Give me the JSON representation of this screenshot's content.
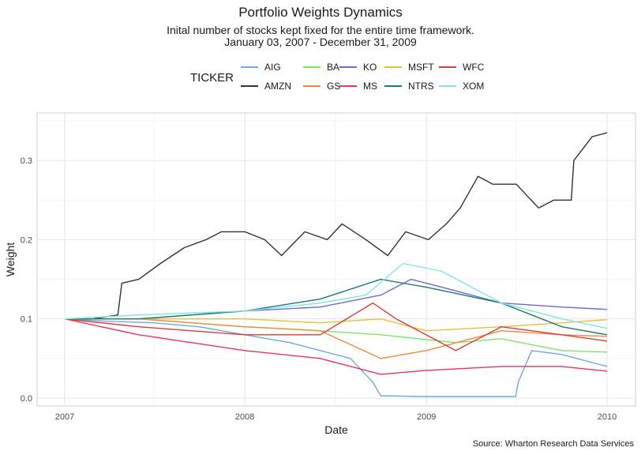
{
  "chart_data": {
    "type": "line",
    "title": "Portfolio Weights Dynamics",
    "subtitle_line1": "Inital number of stocks kept fixed for the entire time framework.",
    "subtitle_line2": "January 03, 2007 - December 31, 2009",
    "xlabel": "Date",
    "ylabel": "Weight",
    "caption": "Source: Wharton Research Data Services",
    "legend_title": "TICKER",
    "legend_position": "top",
    "grid": true,
    "xlim": [
      "2007-01-03",
      "2009-12-31"
    ],
    "ylim": [
      -0.01,
      0.36
    ],
    "x_ticks": [
      "2007",
      "2008",
      "2009",
      "2010"
    ],
    "y_ticks": [
      "0.0",
      "0.1",
      "0.2",
      "0.3"
    ],
    "series": [
      {
        "name": "AIG",
        "color": "#6fa8e6",
        "x": [
          "2007-01-03",
          "2007-04-01",
          "2007-07-01",
          "2007-10-01",
          "2008-01-01",
          "2008-04-01",
          "2008-06-01",
          "2008-08-01",
          "2008-09-15",
          "2008-10-01",
          "2009-01-01",
          "2009-04-01",
          "2009-06-30",
          "2009-07-05",
          "2009-08-01",
          "2009-10-01",
          "2009-12-31"
        ],
        "y": [
          0.1,
          0.097,
          0.095,
          0.09,
          0.08,
          0.07,
          0.06,
          0.05,
          0.02,
          0.003,
          0.002,
          0.002,
          0.002,
          0.02,
          0.06,
          0.055,
          0.04
        ]
      },
      {
        "name": "AMZN",
        "color": "#333333",
        "x": [
          "2007-01-03",
          "2007-03-01",
          "2007-04-20",
          "2007-04-28",
          "2007-06-01",
          "2007-07-15",
          "2007-09-01",
          "2007-10-15",
          "2007-11-15",
          "2008-01-01",
          "2008-02-10",
          "2008-03-15",
          "2008-05-01",
          "2008-06-15",
          "2008-07-15",
          "2008-09-01",
          "2008-10-15",
          "2008-11-20",
          "2009-01-05",
          "2009-02-10",
          "2009-03-10",
          "2009-04-15",
          "2009-05-15",
          "2009-07-01",
          "2009-08-15",
          "2009-09-15",
          "2009-10-20",
          "2009-10-25",
          "2009-12-01",
          "2009-12-31"
        ],
        "y": [
          0.1,
          0.1,
          0.105,
          0.145,
          0.15,
          0.17,
          0.19,
          0.2,
          0.21,
          0.21,
          0.2,
          0.18,
          0.21,
          0.2,
          0.22,
          0.2,
          0.18,
          0.21,
          0.2,
          0.22,
          0.24,
          0.28,
          0.27,
          0.27,
          0.24,
          0.25,
          0.25,
          0.3,
          0.33,
          0.335
        ]
      },
      {
        "name": "BA",
        "color": "#7fe56a",
        "x": [
          "2007-01-03",
          "2007-06-01",
          "2008-01-01",
          "2008-06-01",
          "2008-10-01",
          "2009-03-01",
          "2009-06-01",
          "2009-10-01",
          "2009-12-31"
        ],
        "y": [
          0.1,
          0.1,
          0.09,
          0.085,
          0.08,
          0.07,
          0.075,
          0.06,
          0.058
        ]
      },
      {
        "name": "GS",
        "color": "#f08a3c",
        "x": [
          "2007-01-03",
          "2007-06-01",
          "2008-01-01",
          "2008-06-01",
          "2008-10-01",
          "2009-01-01",
          "2009-06-01",
          "2009-10-01",
          "2009-12-31"
        ],
        "y": [
          0.1,
          0.1,
          0.09,
          0.085,
          0.05,
          0.06,
          0.085,
          0.08,
          0.078
        ]
      },
      {
        "name": "KO",
        "color": "#6b6bdd",
        "x": [
          "2007-01-03",
          "2007-06-01",
          "2008-01-01",
          "2008-06-01",
          "2008-10-01",
          "2008-12-01",
          "2009-02-01",
          "2009-06-01",
          "2009-10-01",
          "2009-12-31"
        ],
        "y": [
          0.1,
          0.1,
          0.11,
          0.115,
          0.13,
          0.15,
          0.14,
          0.12,
          0.115,
          0.112
        ]
      },
      {
        "name": "MS",
        "color": "#e8365d",
        "x": [
          "2007-01-03",
          "2007-06-01",
          "2008-01-01",
          "2008-06-01",
          "2008-10-01",
          "2009-01-01",
          "2009-06-01",
          "2009-10-01",
          "2009-12-31"
        ],
        "y": [
          0.1,
          0.08,
          0.06,
          0.05,
          0.03,
          0.035,
          0.04,
          0.04,
          0.034
        ]
      },
      {
        "name": "MSFT",
        "color": "#e0c43a",
        "x": [
          "2007-01-03",
          "2007-06-01",
          "2008-01-01",
          "2008-06-01",
          "2008-10-01",
          "2009-01-01",
          "2009-06-01",
          "2009-10-01",
          "2009-12-31"
        ],
        "y": [
          0.1,
          0.1,
          0.1,
          0.095,
          0.1,
          0.085,
          0.09,
          0.095,
          0.099
        ]
      },
      {
        "name": "NTRS",
        "color": "#1d7b73",
        "x": [
          "2007-01-03",
          "2007-06-01",
          "2008-01-01",
          "2008-06-01",
          "2008-10-01",
          "2009-01-01",
          "2009-06-01",
          "2009-10-01",
          "2009-12-31"
        ],
        "y": [
          0.1,
          0.1,
          0.11,
          0.125,
          0.15,
          0.14,
          0.12,
          0.09,
          0.08
        ]
      },
      {
        "name": "WFC",
        "color": "#e03a3a",
        "x": [
          "2007-01-03",
          "2007-06-01",
          "2008-01-01",
          "2008-06-01",
          "2008-09-15",
          "2008-11-01",
          "2009-03-01",
          "2009-06-01",
          "2009-10-01",
          "2009-12-31"
        ],
        "y": [
          0.1,
          0.09,
          0.08,
          0.08,
          0.12,
          0.1,
          0.06,
          0.09,
          0.08,
          0.072
        ]
      },
      {
        "name": "XOM",
        "color": "#7ee8e0",
        "x": [
          "2007-01-03",
          "2007-06-01",
          "2008-01-01",
          "2008-06-01",
          "2008-09-01",
          "2008-11-15",
          "2009-02-01",
          "2009-06-01",
          "2009-10-01",
          "2009-12-31"
        ],
        "y": [
          0.1,
          0.105,
          0.11,
          0.12,
          0.13,
          0.17,
          0.16,
          0.12,
          0.1,
          0.088
        ]
      }
    ]
  }
}
